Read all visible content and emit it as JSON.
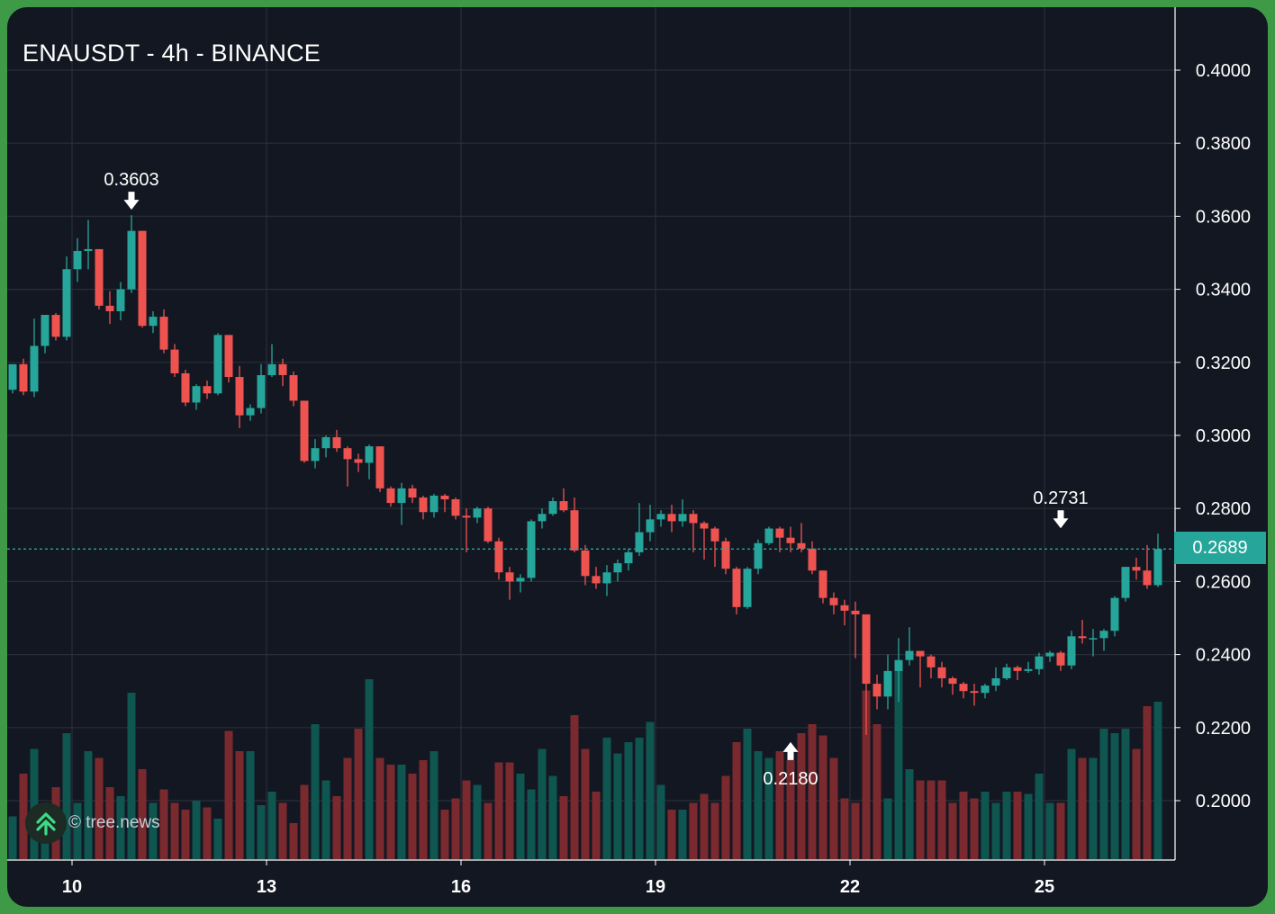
{
  "title": "ENAUSDT - 4h - BINANCE",
  "watermark": "© tree.news",
  "current_price_label": "0.2689",
  "colors": {
    "background": "#131722",
    "grid": "#2a2e39",
    "up": "#26a69a",
    "down": "#ef5350",
    "up_volume": "#0f5550",
    "down_volume": "#7a2a2e",
    "price_line": "#26a69a",
    "axis_text": "#ffffff"
  },
  "chart_data": {
    "type": "candlestick",
    "symbol": "ENAUSDT",
    "interval": "4h",
    "exchange": "BINANCE",
    "x_tick_labels": [
      "10",
      "13",
      "16",
      "19",
      "22",
      "25"
    ],
    "y_tick_labels": [
      "0.4000",
      "0.3800",
      "0.3600",
      "0.3400",
      "0.3200",
      "0.3000",
      "0.2800",
      "0.2600",
      "0.2400",
      "0.2200",
      "0.2000"
    ],
    "ylim": [
      0.184,
      0.417
    ],
    "current_price": 0.2689,
    "annotations": [
      {
        "label": "0.3603",
        "value": 0.3603,
        "candle_index": 11,
        "direction": "down"
      },
      {
        "label": "0.2180",
        "value": 0.218,
        "candle_index": 72,
        "direction": "up"
      },
      {
        "label": "0.2731",
        "value": 0.2731,
        "candle_index": 97,
        "direction": "down"
      }
    ],
    "candles": [
      [
        0.3125,
        0.3195,
        0.3195,
        0.3115,
        19
      ],
      [
        0.3195,
        0.312,
        0.321,
        0.311,
        38
      ],
      [
        0.312,
        0.3245,
        0.332,
        0.3105,
        49
      ],
      [
        0.3245,
        0.333,
        0.333,
        0.3225,
        25
      ],
      [
        0.333,
        0.327,
        0.3335,
        0.326,
        32
      ],
      [
        0.327,
        0.3455,
        0.349,
        0.326,
        56
      ],
      [
        0.3455,
        0.3505,
        0.354,
        0.342,
        25
      ],
      [
        0.3505,
        0.351,
        0.359,
        0.3455,
        48
      ],
      [
        0.351,
        0.3355,
        0.351,
        0.3345,
        45
      ],
      [
        0.3355,
        0.334,
        0.3395,
        0.3305,
        32
      ],
      [
        0.334,
        0.34,
        0.342,
        0.3315,
        28
      ],
      [
        0.34,
        0.356,
        0.3603,
        0.339,
        74
      ],
      [
        0.356,
        0.33,
        0.356,
        0.3295,
        40
      ],
      [
        0.33,
        0.3325,
        0.334,
        0.328,
        25
      ],
      [
        0.3325,
        0.3235,
        0.3345,
        0.3225,
        31
      ],
      [
        0.3235,
        0.317,
        0.325,
        0.316,
        25
      ],
      [
        0.317,
        0.309,
        0.318,
        0.308,
        22
      ],
      [
        0.309,
        0.3135,
        0.314,
        0.307,
        26
      ],
      [
        0.3135,
        0.3115,
        0.315,
        0.31,
        23
      ],
      [
        0.3115,
        0.3275,
        0.328,
        0.311,
        18
      ],
      [
        0.3275,
        0.316,
        0.3275,
        0.3145,
        57
      ],
      [
        0.316,
        0.3055,
        0.319,
        0.302,
        48
      ],
      [
        0.3055,
        0.3075,
        0.3085,
        0.304,
        48
      ],
      [
        0.3075,
        0.3165,
        0.3195,
        0.306,
        24
      ],
      [
        0.3165,
        0.3195,
        0.325,
        0.316,
        30
      ],
      [
        0.3195,
        0.3165,
        0.321,
        0.3135,
        25
      ],
      [
        0.3165,
        0.3095,
        0.3175,
        0.308,
        16
      ],
      [
        0.3095,
        0.293,
        0.3095,
        0.2925,
        33
      ],
      [
        0.293,
        0.2965,
        0.299,
        0.291,
        60
      ],
      [
        0.2965,
        0.2995,
        0.3,
        0.294,
        35
      ],
      [
        0.2995,
        0.2965,
        0.3015,
        0.2955,
        28
      ],
      [
        0.2965,
        0.2935,
        0.297,
        0.286,
        45
      ],
      [
        0.2935,
        0.2925,
        0.295,
        0.29,
        58
      ],
      [
        0.2925,
        0.297,
        0.2975,
        0.288,
        80
      ],
      [
        0.297,
        0.2855,
        0.297,
        0.2845,
        45
      ],
      [
        0.2855,
        0.2815,
        0.286,
        0.2805,
        42
      ],
      [
        0.2815,
        0.2855,
        0.287,
        0.2755,
        42
      ],
      [
        0.2855,
        0.283,
        0.2865,
        0.2815,
        38
      ],
      [
        0.283,
        0.279,
        0.2835,
        0.277,
        44
      ],
      [
        0.279,
        0.2835,
        0.284,
        0.2775,
        48
      ],
      [
        0.2835,
        0.2825,
        0.284,
        0.279,
        22
      ],
      [
        0.2825,
        0.278,
        0.283,
        0.277,
        27
      ],
      [
        0.278,
        0.2775,
        0.28,
        0.268,
        35
      ],
      [
        0.2775,
        0.28,
        0.2805,
        0.276,
        33
      ],
      [
        0.28,
        0.271,
        0.2805,
        0.2705,
        25
      ],
      [
        0.271,
        0.2625,
        0.272,
        0.2605,
        43
      ],
      [
        0.2625,
        0.26,
        0.264,
        0.255,
        43
      ],
      [
        0.26,
        0.261,
        0.262,
        0.257,
        38
      ],
      [
        0.261,
        0.2765,
        0.277,
        0.26,
        31
      ],
      [
        0.2765,
        0.2785,
        0.28,
        0.2745,
        49
      ],
      [
        0.2785,
        0.282,
        0.283,
        0.278,
        37
      ],
      [
        0.282,
        0.2795,
        0.2855,
        0.279,
        28
      ],
      [
        0.2795,
        0.2685,
        0.283,
        0.268,
        64
      ],
      [
        0.2685,
        0.2615,
        0.27,
        0.259,
        49
      ],
      [
        0.2615,
        0.2595,
        0.264,
        0.258,
        30
      ],
      [
        0.2595,
        0.2625,
        0.2645,
        0.256,
        54
      ],
      [
        0.2625,
        0.265,
        0.266,
        0.26,
        47
      ],
      [
        0.265,
        0.268,
        0.269,
        0.263,
        52
      ],
      [
        0.268,
        0.2735,
        0.2815,
        0.267,
        54
      ],
      [
        0.2735,
        0.277,
        0.281,
        0.271,
        61
      ],
      [
        0.277,
        0.2785,
        0.2795,
        0.275,
        33
      ],
      [
        0.2785,
        0.2765,
        0.281,
        0.2735,
        22
      ],
      [
        0.2765,
        0.2785,
        0.2825,
        0.275,
        22
      ],
      [
        0.2785,
        0.276,
        0.2795,
        0.268,
        25
      ],
      [
        0.276,
        0.2745,
        0.2765,
        0.266,
        29
      ],
      [
        0.2745,
        0.271,
        0.275,
        0.264,
        25
      ],
      [
        0.271,
        0.2635,
        0.272,
        0.262,
        37
      ],
      [
        0.2635,
        0.253,
        0.264,
        0.251,
        52
      ],
      [
        0.253,
        0.2635,
        0.264,
        0.2525,
        58
      ],
      [
        0.2635,
        0.2705,
        0.2715,
        0.262,
        48
      ],
      [
        0.2705,
        0.2745,
        0.275,
        0.27,
        45
      ],
      [
        0.2745,
        0.272,
        0.275,
        0.268,
        48
      ],
      [
        0.272,
        0.2705,
        0.275,
        0.268,
        44
      ],
      [
        0.2705,
        0.269,
        0.276,
        0.268,
        56
      ],
      [
        0.269,
        0.263,
        0.271,
        0.262,
        60
      ],
      [
        0.263,
        0.2555,
        0.263,
        0.254,
        55
      ],
      [
        0.2555,
        0.2535,
        0.257,
        0.251,
        45
      ],
      [
        0.2535,
        0.252,
        0.255,
        0.248,
        27
      ],
      [
        0.252,
        0.251,
        0.2545,
        0.239,
        25
      ],
      [
        0.251,
        0.232,
        0.251,
        0.218,
        75
      ],
      [
        0.232,
        0.2285,
        0.2345,
        0.225,
        60
      ],
      [
        0.2285,
        0.2355,
        0.24,
        0.225,
        27
      ],
      [
        0.2355,
        0.2385,
        0.2445,
        0.227,
        86
      ],
      [
        0.2385,
        0.241,
        0.2475,
        0.237,
        40
      ],
      [
        0.241,
        0.2395,
        0.2405,
        0.231,
        35
      ],
      [
        0.2395,
        0.2365,
        0.24,
        0.2335,
        35
      ],
      [
        0.2365,
        0.2335,
        0.238,
        0.231,
        35
      ],
      [
        0.2335,
        0.232,
        0.234,
        0.229,
        25
      ],
      [
        0.232,
        0.23,
        0.2325,
        0.228,
        30
      ],
      [
        0.23,
        0.2295,
        0.232,
        0.226,
        27
      ],
      [
        0.2295,
        0.2315,
        0.232,
        0.228,
        30
      ],
      [
        0.2315,
        0.2335,
        0.2365,
        0.23,
        25
      ],
      [
        0.2335,
        0.2365,
        0.2375,
        0.233,
        30
      ],
      [
        0.2365,
        0.2355,
        0.237,
        0.233,
        30
      ],
      [
        0.2355,
        0.236,
        0.238,
        0.235,
        29
      ],
      [
        0.236,
        0.2395,
        0.2405,
        0.2345,
        38
      ],
      [
        0.2395,
        0.2405,
        0.241,
        0.238,
        25
      ],
      [
        0.2405,
        0.237,
        0.241,
        0.2355,
        25
      ],
      [
        0.237,
        0.245,
        0.2465,
        0.236,
        49
      ],
      [
        0.245,
        0.2445,
        0.2495,
        0.243,
        45
      ],
      [
        0.2445,
        0.2445,
        0.247,
        0.2395,
        45
      ],
      [
        0.2445,
        0.2465,
        0.247,
        0.241,
        58
      ],
      [
        0.2465,
        0.2555,
        0.256,
        0.245,
        56
      ],
      [
        0.2555,
        0.264,
        0.264,
        0.2545,
        58
      ],
      [
        0.264,
        0.263,
        0.2665,
        0.2605,
        49
      ],
      [
        0.263,
        0.259,
        0.27,
        0.258,
        68
      ],
      [
        0.259,
        0.2689,
        0.2731,
        0.2585,
        70
      ]
    ]
  }
}
